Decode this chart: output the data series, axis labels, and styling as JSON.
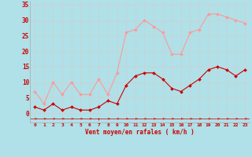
{
  "x": [
    0,
    1,
    2,
    3,
    4,
    5,
    6,
    7,
    8,
    9,
    10,
    11,
    12,
    13,
    14,
    15,
    16,
    17,
    18,
    19,
    20,
    21,
    22,
    23
  ],
  "wind_avg": [
    2,
    1,
    3,
    1,
    2,
    1,
    1,
    2,
    4,
    3,
    9,
    12,
    13,
    13,
    11,
    8,
    7,
    9,
    11,
    14,
    15,
    14,
    12,
    14
  ],
  "wind_gust": [
    7,
    3,
    10,
    6,
    10,
    6,
    6,
    11,
    6,
    13,
    26,
    27,
    30,
    28,
    26,
    19,
    19,
    26,
    27,
    32,
    32,
    31,
    30,
    29
  ],
  "avg_color": "#cc0000",
  "gust_color": "#ff9999",
  "bg_color": "#b0e0e8",
  "grid_color": "#d0d0d0",
  "xlabel": "Vent moyen/en rafales ( km/h )",
  "ylabel_ticks": [
    0,
    5,
    10,
    15,
    20,
    25,
    30,
    35
  ],
  "ylim": [
    -3,
    36
  ],
  "xlim": [
    -0.5,
    23.5
  ]
}
